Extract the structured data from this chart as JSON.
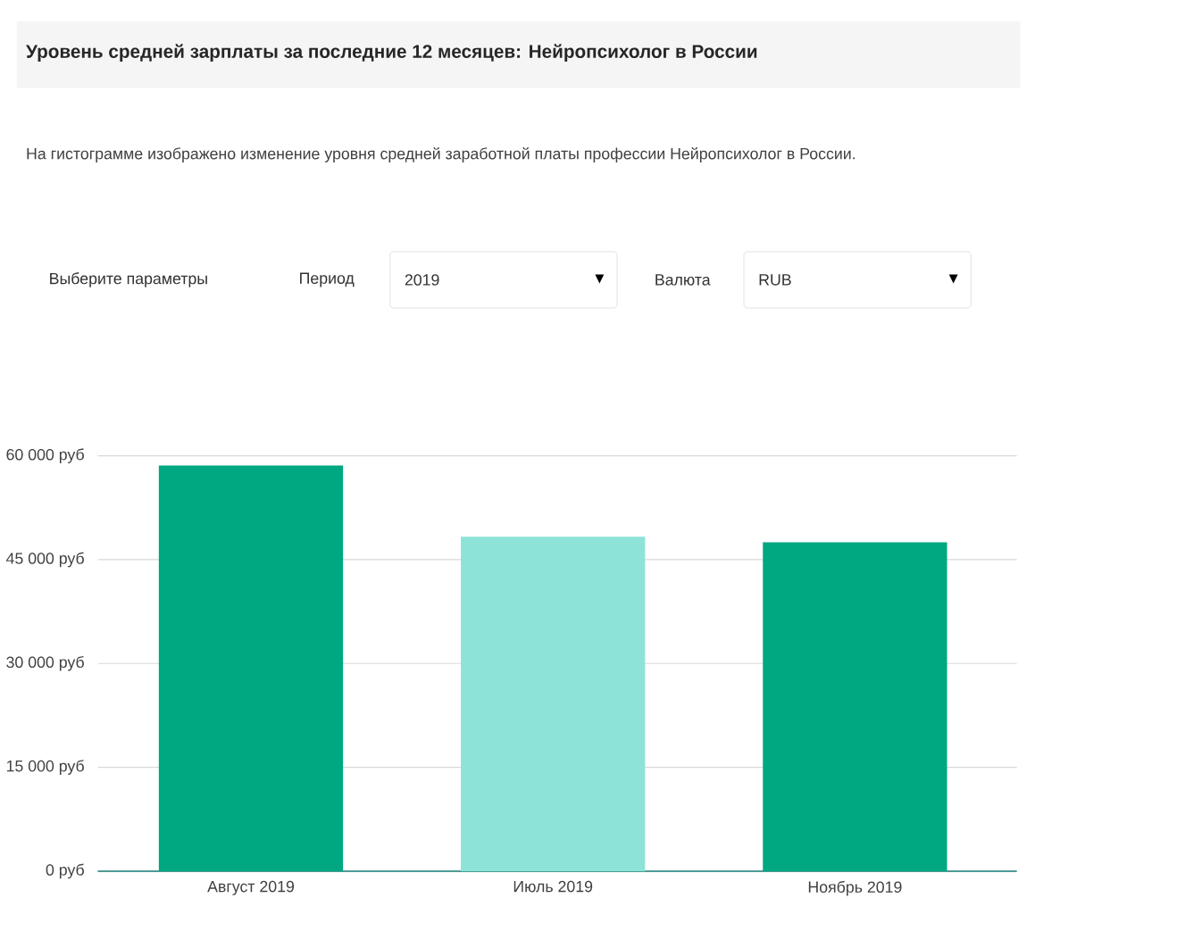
{
  "chart_data": {
    "type": "bar",
    "title": "Уровень средней зарплаты за последние 12 месяцев: Нейропсихолог в России",
    "subtitle": "На гистограмме изображено изменение уровня средней заработной платы профессии Нейропсихолог в России.",
    "annotations": [
      "Выберите параметры",
      "Период",
      "2019",
      "Валюта",
      "RUB"
    ],
    "categories": [
      "Август 2019",
      "Июль 2019",
      "Ноябрь 2019"
    ],
    "values": [
      58600,
      48300,
      47500
    ],
    "colors": [
      "#00a882",
      "#8de3d8",
      "#00a882"
    ],
    "ylim": [
      0,
      60000
    ],
    "yticks": [
      {
        "value": 0,
        "label": "0 руб"
      },
      {
        "value": 15000,
        "label": "15 000 руб"
      },
      {
        "value": 30000,
        "label": "30 000 руб"
      },
      {
        "value": 45000,
        "label": "45 000 руб"
      },
      {
        "value": 60000,
        "label": "60 000 руб"
      }
    ],
    "grid": "y"
  }
}
